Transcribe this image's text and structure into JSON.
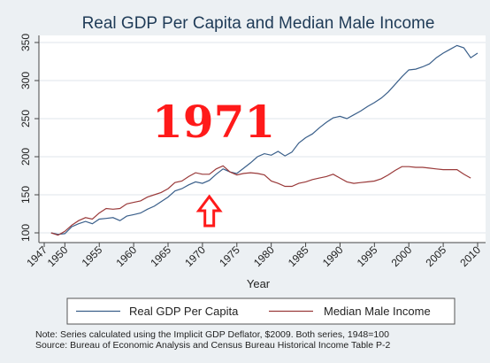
{
  "chart_data": {
    "type": "line",
    "title": "Real GDP Per Capita and Median Male Income",
    "xlabel": "Year",
    "ylabel": "",
    "xlim": [
      1947,
      2010
    ],
    "ylim": [
      100,
      350
    ],
    "x_ticks": [
      "1947",
      "1950",
      "1955",
      "1960",
      "1965",
      "1970",
      "1975",
      "1980",
      "1985",
      "1990",
      "1995",
      "2000",
      "2005",
      "2010"
    ],
    "y_ticks": [
      "100",
      "150",
      "200",
      "250",
      "300",
      "350"
    ],
    "grid": "horizontal",
    "legend_position": "bottom",
    "series": [
      {
        "name": "Real GDP Per Capita",
        "color": "#3a5f8a",
        "x": [
          1948,
          1949,
          1950,
          1951,
          1952,
          1953,
          1954,
          1955,
          1956,
          1957,
          1958,
          1959,
          1960,
          1961,
          1962,
          1963,
          1964,
          1965,
          1966,
          1967,
          1968,
          1969,
          1970,
          1971,
          1972,
          1973,
          1974,
          1975,
          1976,
          1977,
          1978,
          1979,
          1980,
          1981,
          1982,
          1983,
          1984,
          1985,
          1986,
          1987,
          1988,
          1989,
          1990,
          1991,
          1992,
          1993,
          1994,
          1995,
          1996,
          1997,
          1998,
          1999,
          2000,
          2001,
          2002,
          2003,
          2004,
          2005,
          2006,
          2007,
          2008,
          2009,
          2010
        ],
        "y": [
          100,
          98,
          99,
          108,
          112,
          115,
          112,
          118,
          119,
          120,
          116,
          122,
          124,
          126,
          131,
          135,
          141,
          147,
          155,
          158,
          163,
          167,
          165,
          169,
          177,
          184,
          180,
          178,
          185,
          192,
          200,
          204,
          202,
          207,
          201,
          206,
          218,
          225,
          230,
          238,
          245,
          251,
          253,
          250,
          255,
          260,
          266,
          271,
          277,
          285,
          295,
          305,
          314,
          315,
          318,
          322,
          330,
          336,
          341,
          346,
          343,
          330,
          336
        ]
      },
      {
        "name": "Median Male Income",
        "color": "#9a3a3a",
        "x": [
          1948,
          1949,
          1950,
          1951,
          1952,
          1953,
          1954,
          1955,
          1956,
          1957,
          1958,
          1959,
          1960,
          1961,
          1962,
          1963,
          1964,
          1965,
          1966,
          1967,
          1968,
          1969,
          1970,
          1971,
          1972,
          1973,
          1974,
          1975,
          1976,
          1977,
          1978,
          1979,
          1980,
          1981,
          1982,
          1983,
          1984,
          1985,
          1986,
          1987,
          1988,
          1989,
          1990,
          1991,
          1992,
          1993,
          1994,
          1995,
          1996,
          1997,
          1998,
          1999,
          2000,
          2001,
          2002,
          2003,
          2004,
          2005,
          2006,
          2007,
          2008,
          2009
        ],
        "y": [
          100,
          97,
          102,
          110,
          116,
          120,
          118,
          126,
          132,
          131,
          132,
          138,
          140,
          142,
          147,
          150,
          153,
          158,
          166,
          168,
          174,
          179,
          177,
          177,
          184,
          188,
          180,
          176,
          178,
          179,
          178,
          176,
          168,
          165,
          161,
          161,
          165,
          167,
          170,
          172,
          174,
          177,
          172,
          167,
          165,
          166,
          167,
          168,
          171,
          176,
          182,
          187,
          187,
          186,
          186,
          185,
          184,
          183,
          183,
          183,
          177,
          172
        ]
      }
    ]
  },
  "annotation": {
    "text": "1971",
    "arrow_year": 1971
  },
  "notes": {
    "line1": "Note: Series calculated using the Implicit GDP Deflator, $2009. Both series, 1948=100",
    "line2": "Source: Bureau of Economic Analysis and Census Bureau Historical Income Table P-2"
  }
}
